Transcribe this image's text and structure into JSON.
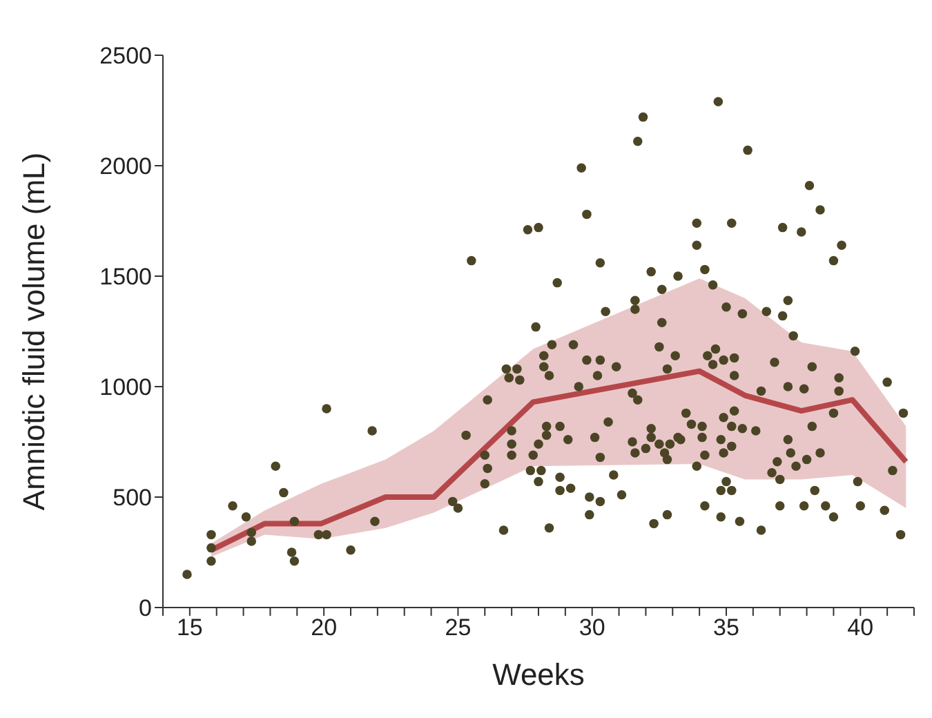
{
  "chart_data": {
    "type": "scatter",
    "xlabel": "Weeks",
    "ylabel": "Amniotic fluid volume (mL)",
    "xlim": [
      14,
      42
    ],
    "ylim": [
      0,
      2500
    ],
    "grid": false,
    "xticks": [
      {
        "value": 14,
        "label": null
      },
      15,
      {
        "value": 16,
        "label": null
      },
      {
        "value": 17,
        "label": null
      },
      {
        "value": 18,
        "label": null
      },
      {
        "value": 19,
        "label": null
      },
      20,
      {
        "value": 21,
        "label": null
      },
      {
        "value": 22,
        "label": null
      },
      {
        "value": 23,
        "label": null
      },
      {
        "value": 24,
        "label": null
      },
      25,
      {
        "value": 26,
        "label": null
      },
      {
        "value": 27,
        "label": null
      },
      {
        "value": 28,
        "label": null
      },
      {
        "value": 29,
        "label": null
      },
      30,
      {
        "value": 31,
        "label": null
      },
      {
        "value": 32,
        "label": null
      },
      {
        "value": 33,
        "label": null
      },
      {
        "value": 34,
        "label": null
      },
      35,
      {
        "value": 36,
        "label": null
      },
      {
        "value": 37,
        "label": null
      },
      {
        "value": 38,
        "label": null
      },
      {
        "value": 39,
        "label": null
      },
      40,
      {
        "value": 41,
        "label": null
      },
      {
        "value": 42,
        "label": null
      }
    ],
    "yticks": [
      0,
      500,
      1000,
      1500,
      2000,
      2500
    ],
    "series": [
      {
        "type": "line",
        "color": "#b5474a",
        "marker": "none",
        "x": [
          15.8,
          17.8,
          19.9,
          22.3,
          24.1,
          27.8,
          34.0,
          35.7,
          37.8,
          39.7,
          41.7
        ],
        "values": [
          260,
          380,
          380,
          500,
          500,
          930,
          1070,
          960,
          890,
          940,
          660
        ],
        "lower": [
          230,
          330,
          310,
          360,
          430,
          640,
          650,
          580,
          580,
          600,
          450
        ],
        "upper": [
          290,
          440,
          560,
          670,
          800,
          1170,
          1490,
          1400,
          1200,
          1160,
          820
        ]
      },
      {
        "color": "#4b4526",
        "marker": "circle",
        "x": [
          31.9,
          31.7,
          29.6,
          29.8,
          27.6,
          28.0,
          25.5,
          30.3,
          28.7,
          32.2,
          33.2,
          32.6,
          31.6,
          31.6,
          30.5,
          32.6,
          27.9,
          28.5,
          29.3,
          34.7,
          35.8,
          38.1,
          38.5,
          33.9,
          35.2,
          37.1,
          37.8,
          39.3,
          33.9,
          39.0,
          34.2,
          34.5,
          37.3,
          35.0,
          35.6,
          36.5,
          37.1,
          37.5,
          34.6,
          20.1,
          21.8,
          18.2,
          18.5,
          16.6,
          17.1,
          15.8,
          17.3,
          17.3,
          15.8,
          15.8,
          14.9,
          18.9,
          19.8,
          20.1,
          21.9,
          21.0,
          18.8,
          18.9,
          28.2,
          26.8,
          27.2,
          28.2,
          26.9,
          27.3,
          28.4,
          29.8,
          30.3,
          30.2,
          30.9,
          32.5,
          33.1,
          32.8,
          26.1,
          29.5,
          31.5,
          31.7,
          25.3,
          30.6,
          28.3,
          28.8,
          28.3,
          27.0,
          29.1,
          30.1,
          27.0,
          28.0,
          32.2,
          32.2,
          31.5,
          32.0,
          32.5,
          32.9,
          32.7,
          32.8,
          31.6,
          33.2,
          26.0,
          27.0,
          27.8,
          30.3,
          26.1,
          27.7,
          28.1,
          30.8,
          28.8,
          26.0,
          28.0,
          28.8,
          29.2,
          24.8,
          25.0,
          29.9,
          30.3,
          31.1,
          26.7,
          28.4,
          29.9,
          32.3,
          32.8,
          34.3,
          34.5,
          34.9,
          35.3,
          35.3,
          36.8,
          38.2,
          39.8,
          39.2,
          39.2,
          37.3,
          37.9,
          36.3,
          41.0,
          41.6,
          39.0,
          33.5,
          33.7,
          34.1,
          34.1,
          34.9,
          35.3,
          35.2,
          35.6,
          36.1,
          38.2,
          33.3,
          34.8,
          35.2,
          37.3,
          37.4,
          34.9,
          34.2,
          38.5,
          36.9,
          38.0,
          37.6,
          33.9,
          36.7,
          37.0,
          41.2,
          39.9,
          35.0,
          34.8,
          35.2,
          38.3,
          34.2,
          37.0,
          37.9,
          38.7,
          40.0,
          40.9,
          39.0,
          34.8,
          35.5,
          36.3,
          41.5
        ],
        "values": [
          2220,
          2110,
          1990,
          1780,
          1710,
          1720,
          1570,
          1560,
          1470,
          1520,
          1500,
          1440,
          1390,
          1350,
          1340,
          1290,
          1270,
          1190,
          1190,
          2290,
          2070,
          1910,
          1800,
          1740,
          1740,
          1720,
          1700,
          1640,
          1640,
          1570,
          1530,
          1460,
          1390,
          1360,
          1330,
          1340,
          1320,
          1230,
          1170,
          900,
          800,
          640,
          520,
          460,
          410,
          330,
          340,
          300,
          270,
          210,
          150,
          390,
          330,
          330,
          390,
          260,
          250,
          210,
          1140,
          1080,
          1080,
          1090,
          1040,
          1030,
          1050,
          1120,
          1120,
          1050,
          1090,
          1180,
          1140,
          1080,
          940,
          1000,
          970,
          940,
          780,
          840,
          820,
          820,
          780,
          800,
          760,
          770,
          740,
          740,
          810,
          770,
          750,
          720,
          740,
          740,
          700,
          670,
          700,
          770,
          690,
          690,
          690,
          680,
          630,
          620,
          620,
          600,
          590,
          560,
          570,
          530,
          540,
          480,
          450,
          500,
          480,
          510,
          350,
          360,
          420,
          380,
          420,
          1140,
          1100,
          1120,
          1130,
          1050,
          1110,
          1090,
          1160,
          1040,
          980,
          1000,
          990,
          980,
          1020,
          880,
          880,
          880,
          830,
          820,
          770,
          860,
          890,
          820,
          810,
          800,
          820,
          760,
          760,
          730,
          760,
          700,
          700,
          690,
          700,
          660,
          670,
          640,
          640,
          610,
          580,
          620,
          570,
          570,
          530,
          530,
          530,
          460,
          460,
          460,
          460,
          460,
          440,
          410,
          410,
          390,
          350,
          330
        ]
      }
    ]
  }
}
